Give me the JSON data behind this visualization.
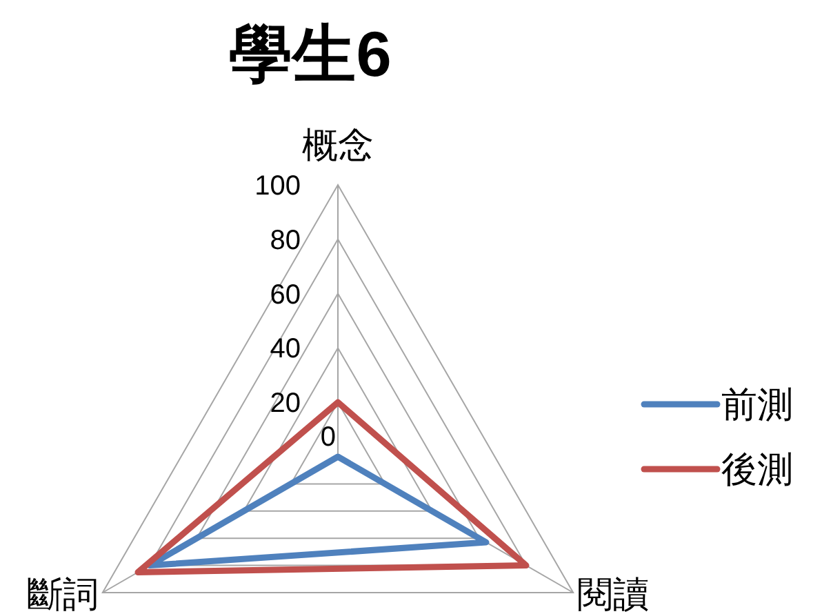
{
  "chart_data": {
    "type": "radar",
    "title": "學生6",
    "categories": [
      "概念",
      "閱讀",
      "斷詞"
    ],
    "series": [
      {
        "name": "前測",
        "color": "#4f81bd",
        "values": [
          0,
          63,
          80
        ]
      },
      {
        "name": "後測",
        "color": "#c0504d",
        "values": [
          20,
          80,
          85
        ]
      }
    ],
    "ylim": [
      0,
      100
    ],
    "yticks": [
      0,
      20,
      40,
      60,
      80,
      100
    ],
    "grid": true,
    "legend": "right"
  }
}
